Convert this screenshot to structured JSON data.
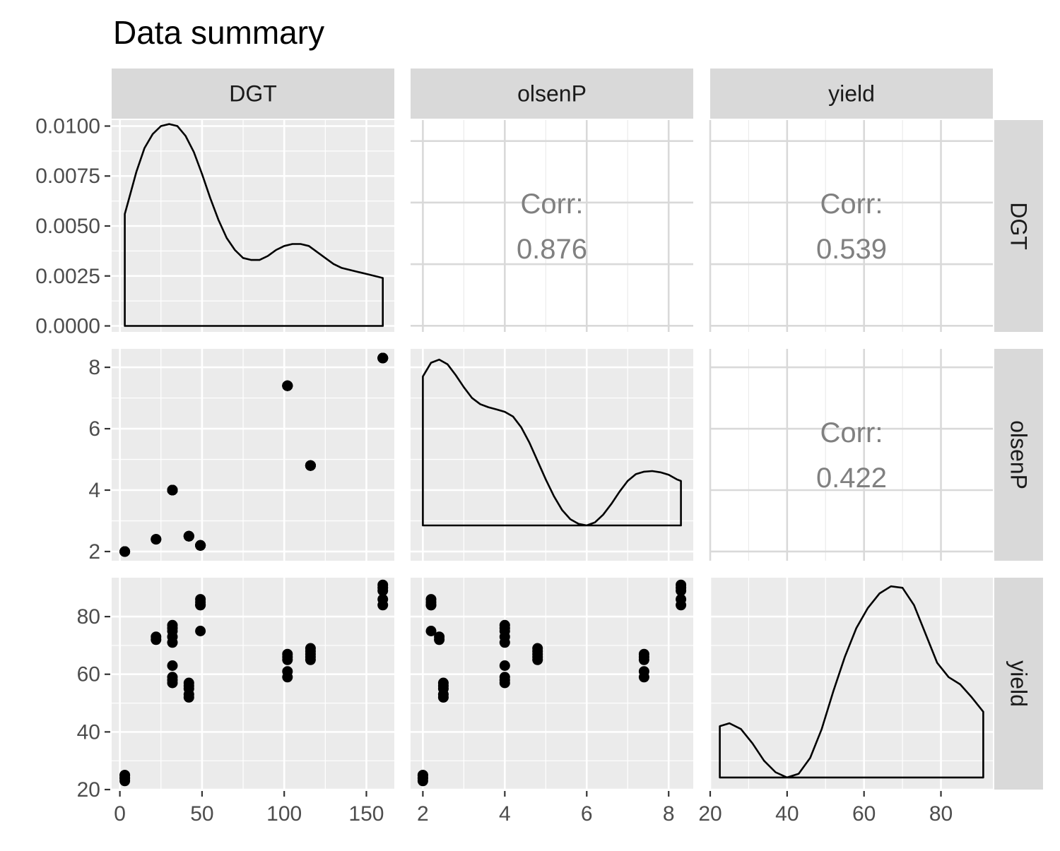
{
  "chart_data": {
    "type": "scatter",
    "title": "Data summary",
    "variables": [
      "DGT",
      "olsenP",
      "yield"
    ],
    "colors": {
      "panel_bg": "#ebebeb",
      "grid": "#ffffff",
      "strip_bg": "#d9d9d9",
      "corr_grid": "#d9d9d9",
      "ink": "#000000",
      "corr_text": "#808080"
    },
    "axes": {
      "DGT": {
        "lim": [
          -5,
          167
        ],
        "ticks": [
          0,
          50,
          100,
          150
        ],
        "tick_labels": [
          "0",
          "50",
          "100",
          "150"
        ]
      },
      "olsenP": {
        "lim": [
          1.7,
          8.6
        ],
        "ticks": [
          2,
          4,
          6,
          8
        ],
        "tick_labels": [
          "2",
          "4",
          "6",
          "8"
        ]
      },
      "yield": {
        "lim": [
          20,
          93.5
        ],
        "ticks": [
          20,
          40,
          60,
          80
        ],
        "tick_labels": [
          "20",
          "40",
          "60",
          "80"
        ]
      }
    },
    "density_axis": {
      "lim": [
        -0.0003,
        0.0103
      ],
      "ticks": [
        0,
        0.0025,
        0.005,
        0.0075,
        0.01
      ],
      "tick_labels": [
        "0.0000",
        "0.0025",
        "0.0050",
        "0.0075",
        "0.0100"
      ]
    },
    "densities": {
      "DGT": {
        "x": [
          3,
          5,
          10,
          15,
          20,
          25,
          30,
          35,
          40,
          45,
          50,
          55,
          60,
          65,
          70,
          75,
          80,
          85,
          90,
          95,
          100,
          105,
          110,
          115,
          120,
          125,
          130,
          135,
          140,
          145,
          150,
          155,
          160
        ],
        "y": [
          0.0056,
          0.0062,
          0.0077,
          0.0089,
          0.0096,
          0.01,
          0.0101,
          0.01,
          0.0095,
          0.0087,
          0.0076,
          0.0064,
          0.0053,
          0.0044,
          0.0038,
          0.0034,
          0.0033,
          0.0033,
          0.0035,
          0.0038,
          0.004,
          0.0041,
          0.0041,
          0.004,
          0.0037,
          0.0034,
          0.0031,
          0.0029,
          0.0028,
          0.0027,
          0.0026,
          0.0025,
          0.0024
        ]
      },
      "olsenP": {
        "x": [
          2.0,
          2.2,
          2.4,
          2.6,
          2.8,
          3.0,
          3.2,
          3.4,
          3.6,
          3.8,
          4.0,
          4.2,
          4.4,
          4.6,
          4.8,
          5.0,
          5.2,
          5.4,
          5.6,
          5.8,
          6.0,
          6.2,
          6.4,
          6.6,
          6.8,
          7.0,
          7.2,
          7.4,
          7.6,
          7.8,
          8.0,
          8.2,
          8.3
        ],
        "y": [
          7.7,
          8.15,
          8.25,
          8.1,
          7.75,
          7.35,
          7.0,
          6.8,
          6.7,
          6.63,
          6.55,
          6.4,
          6.05,
          5.55,
          4.95,
          4.35,
          3.8,
          3.35,
          3.05,
          2.9,
          2.85,
          2.95,
          3.2,
          3.55,
          3.95,
          4.3,
          4.52,
          4.6,
          4.62,
          4.58,
          4.5,
          4.35,
          4.3
        ]
      },
      "yield": {
        "x": [
          22.5,
          25,
          28,
          31,
          34,
          37,
          40,
          43,
          46,
          49,
          52,
          55,
          58,
          61,
          64,
          67,
          70,
          73,
          76,
          79,
          82,
          85,
          88,
          91
        ],
        "y": [
          42,
          43,
          41,
          36,
          30,
          26,
          24.2,
          25.5,
          31,
          41,
          54,
          66,
          76,
          83,
          88,
          90.5,
          90,
          84,
          74,
          64,
          59,
          56.5,
          52,
          47
        ]
      }
    },
    "scatter": {
      "DGT": [
        3,
        3,
        3,
        3,
        3,
        22,
        22,
        32,
        32,
        32,
        32,
        32,
        32,
        32,
        32,
        32,
        42,
        42,
        42,
        42,
        42,
        49,
        49,
        49,
        49,
        49,
        102,
        102,
        102,
        102,
        102,
        116,
        116,
        116,
        116,
        116,
        160,
        160,
        160,
        160,
        160
      ],
      "olsenP": [
        2,
        2,
        2,
        2,
        2,
        2.4,
        2.4,
        4,
        4,
        4,
        4,
        4,
        4,
        4,
        4,
        4,
        2.5,
        2.5,
        2.5,
        2.5,
        2.5,
        2.2,
        2.2,
        2.2,
        2.2,
        2.2,
        7.4,
        7.4,
        7.4,
        7.4,
        7.4,
        4.8,
        4.8,
        4.8,
        4.8,
        4.8,
        8.3,
        8.3,
        8.3,
        8.3,
        8.3
      ],
      "yield": [
        23,
        24,
        25,
        24,
        25,
        72,
        73,
        71,
        73,
        75,
        77,
        63,
        57,
        58,
        59,
        76,
        52,
        55,
        57,
        56,
        53,
        75,
        84,
        85,
        86,
        84,
        59,
        61,
        65,
        67,
        66,
        65,
        67,
        68,
        69,
        66,
        84,
        86,
        89,
        90,
        91
      ]
    },
    "correlations": [
      {
        "row": "DGT",
        "col": "olsenP",
        "label": "Corr:",
        "value": "0.876"
      },
      {
        "row": "DGT",
        "col": "yield",
        "label": "Corr:",
        "value": "0.539"
      },
      {
        "row": "olsenP",
        "col": "yield",
        "label": "Corr:",
        "value": "0.422"
      }
    ]
  }
}
